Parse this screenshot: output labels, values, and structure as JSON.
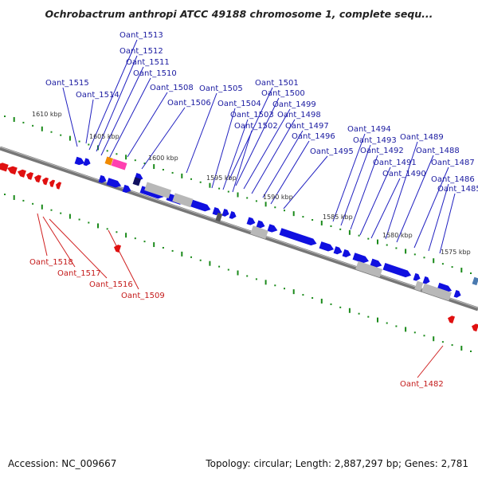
{
  "title": "Ochrobactrum anthropi ATCC 49188 chromosome 1, complete sequ...",
  "footer": {
    "accession": "Accession: NC_009667",
    "topology": "Topology: circular; Length: 2,887,297 bp; Genes: 2,781"
  },
  "colors": {
    "forward_gene": "#1010e0",
    "reverse_gene": "#e01010",
    "pseudo_gene": "#b8b8b8",
    "backbone": "#7a7a7a",
    "tick": "#1a8a1a",
    "forward_label": "#1a1aa0",
    "reverse_label": "#c41a1a",
    "orange_feature": "#f08a00",
    "magenta_feature": "#ff40b0"
  },
  "ruler": [
    {
      "label": "1610 kbp"
    },
    {
      "label": "1605 kbp"
    },
    {
      "label": "1600 kbp"
    },
    {
      "label": "1595 kbp"
    },
    {
      "label": "1590 kbp"
    },
    {
      "label": "1585 kbp"
    },
    {
      "label": "1580 kbp"
    },
    {
      "label": "1575 kbp"
    }
  ],
  "forward_labels": [
    "Oant_1513",
    "Oant_1512",
    "Oant_1511",
    "Oant_1510",
    "Oant_1515",
    "Oant_1508",
    "Oant_1514",
    "Oant_1505",
    "Oant_1501",
    "Oant_1500",
    "Oant_1506",
    "Oant_1504",
    "Oant_1499",
    "Oant_1503",
    "Oant_1498",
    "Oant_1502",
    "Oant_1497",
    "Oant_1494",
    "Oant_1496",
    "Oant_1493",
    "Oant_1489",
    "Oant_1495",
    "Oant_1492",
    "Oant_1488",
    "Oant_1491",
    "Oant_1487",
    "Oant_1490",
    "Oant_1486",
    "Oant_1485"
  ],
  "reverse_labels": [
    "Oant_1518",
    "Oant_1517",
    "Oant_1516",
    "Oant_1509",
    "Oant_1482"
  ]
}
